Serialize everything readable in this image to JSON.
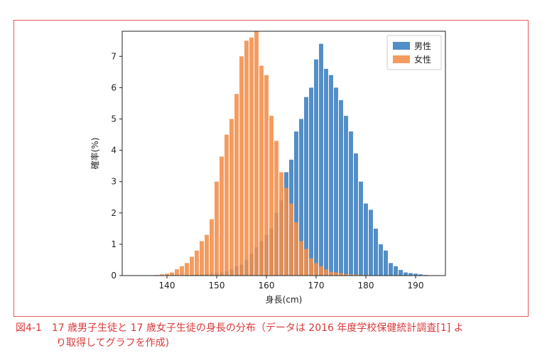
{
  "caption": {
    "label": "図4-1",
    "line1": "17 歳男子生徒と 17 歳女子生徒の身長の分布（データは 2016 年度学校保健統計調査[1] よ",
    "line2": "り取得してグラフを作成)"
  },
  "colors": {
    "male": "#3a7ebf",
    "female": "#f28e4a"
  },
  "chart_data": {
    "type": "bar",
    "subtype": "overlapping-histogram",
    "xlabel": "身長(cm)",
    "ylabel": "確率(%)",
    "xlim": [
      131,
      196
    ],
    "ylim": [
      0,
      7.8
    ],
    "xticks": [
      140,
      150,
      160,
      170,
      180,
      190
    ],
    "yticks": [
      0,
      1,
      2,
      3,
      4,
      5,
      6,
      7
    ],
    "legend_position": "top-right",
    "series": [
      {
        "name": "男性",
        "color": "#3a7ebf",
        "x": [
          142,
          143,
          144,
          145,
          146,
          147,
          148,
          149,
          150,
          151,
          152,
          153,
          154,
          155,
          156,
          157,
          158,
          159,
          160,
          161,
          162,
          163,
          164,
          165,
          166,
          167,
          168,
          169,
          170,
          171,
          172,
          173,
          174,
          175,
          176,
          177,
          178,
          179,
          180,
          181,
          182,
          183,
          184,
          185,
          186,
          187,
          188,
          189,
          190,
          191,
          192,
          193
        ],
        "values": [
          0.01,
          0.01,
          0.02,
          0.02,
          0.03,
          0.04,
          0.05,
          0.06,
          0.08,
          0.1,
          0.14,
          0.2,
          0.3,
          0.35,
          0.5,
          0.7,
          0.9,
          1.1,
          1.3,
          1.5,
          2.0,
          2.4,
          3.3,
          3.7,
          4.6,
          5.0,
          5.7,
          6.0,
          6.9,
          7.4,
          6.6,
          6.4,
          6.0,
          5.6,
          5.1,
          4.6,
          3.9,
          3.0,
          2.3,
          2.1,
          1.5,
          1.0,
          0.8,
          0.4,
          0.3,
          0.18,
          0.1,
          0.08,
          0.06,
          0.04,
          0.02,
          0.01
        ]
      },
      {
        "name": "女性",
        "color": "#f28e4a",
        "x": [
          136,
          137,
          138,
          139,
          140,
          141,
          142,
          143,
          144,
          145,
          146,
          147,
          148,
          149,
          150,
          151,
          152,
          153,
          154,
          155,
          156,
          157,
          158,
          159,
          160,
          161,
          162,
          163,
          164,
          165,
          166,
          167,
          168,
          169,
          170,
          171,
          172,
          173,
          174,
          175,
          176,
          177,
          178,
          179,
          180,
          181,
          182,
          183,
          184,
          185
        ],
        "values": [
          0.01,
          0.01,
          0.02,
          0.04,
          0.06,
          0.1,
          0.2,
          0.3,
          0.4,
          0.6,
          0.8,
          1.1,
          1.3,
          1.8,
          3.0,
          3.8,
          4.5,
          5.0,
          5.8,
          7.0,
          7.5,
          7.6,
          7.8,
          6.7,
          6.4,
          5.1,
          4.3,
          3.3,
          2.8,
          2.3,
          1.7,
          1.1,
          0.85,
          0.55,
          0.4,
          0.3,
          0.2,
          0.12,
          0.1,
          0.08,
          0.05,
          0.04,
          0.03,
          0.02,
          0.02,
          0.01,
          0.01,
          0.01,
          0.01,
          0.01
        ]
      }
    ]
  }
}
